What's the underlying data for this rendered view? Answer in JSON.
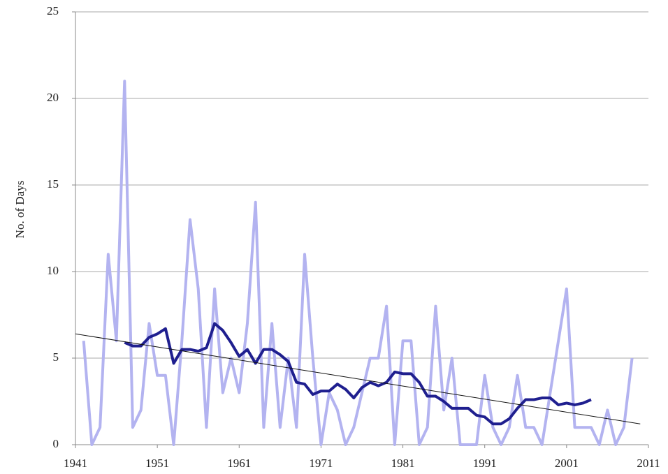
{
  "chart_data": {
    "type": "line",
    "ylabel": "No. of Days",
    "xlim": [
      1941,
      2011
    ],
    "xticks": [
      1941,
      1951,
      1961,
      1971,
      1981,
      1991,
      2001,
      2011
    ],
    "ylim": [
      0,
      25
    ],
    "yticks": [
      0,
      5,
      10,
      15,
      20,
      25
    ],
    "grid": true,
    "series": [
      {
        "color": "#b3b3f0",
        "width": 4,
        "x": [
          1942,
          1943,
          1944,
          1945,
          1946,
          1947,
          1948,
          1949,
          1950,
          1951,
          1952,
          1953,
          1954,
          1955,
          1956,
          1957,
          1958,
          1959,
          1960,
          1961,
          1962,
          1963,
          1964,
          1965,
          1966,
          1967,
          1968,
          1969,
          1970,
          1971,
          1972,
          1973,
          1974,
          1975,
          1976,
          1977,
          1978,
          1979,
          1980,
          1981,
          1982,
          1983,
          1984,
          1985,
          1986,
          1987,
          1988,
          1989,
          1990,
          1991,
          1992,
          1993,
          1994,
          1995,
          1996,
          1997,
          1998,
          1999,
          2000,
          2001,
          2002,
          2003,
          2004,
          2005,
          2006,
          2007,
          2008,
          2009
        ],
        "values": [
          6,
          0,
          1,
          11,
          6,
          21,
          1,
          2,
          7,
          4,
          4,
          0,
          6,
          13,
          9,
          1,
          9,
          3,
          5,
          3,
          7,
          14,
          1,
          7,
          1,
          5,
          1,
          11,
          5,
          0,
          3,
          2,
          0,
          1,
          3,
          5,
          5,
          8,
          0,
          6,
          6,
          0,
          1,
          8,
          2,
          5,
          0,
          0,
          0,
          4,
          1,
          0,
          1,
          4,
          1,
          1,
          0,
          3,
          6,
          9,
          1,
          1,
          1,
          0,
          2,
          0,
          1,
          5
        ]
      },
      {
        "color": "#1f1f8f",
        "width": 4,
        "x": [
          1947,
          1948,
          1949,
          1950,
          1951,
          1952,
          1953,
          1954,
          1955,
          1956,
          1957,
          1958,
          1959,
          1960,
          1961,
          1962,
          1963,
          1964,
          1965,
          1966,
          1967,
          1968,
          1969,
          1970,
          1971,
          1972,
          1973,
          1974,
          1975,
          1976,
          1977,
          1978,
          1979,
          1980,
          1981,
          1982,
          1983,
          1984,
          1985,
          1986,
          1987,
          1988,
          1989,
          1990,
          1991,
          1992,
          1993,
          1994,
          1995,
          1996,
          1997,
          1998,
          1999,
          2000,
          2001,
          2002,
          2003,
          2004
        ],
        "values": [
          5.9,
          5.7,
          5.7,
          6.2,
          6.4,
          6.7,
          4.7,
          5.5,
          5.5,
          5.4,
          5.6,
          7.0,
          6.6,
          5.9,
          5.1,
          5.5,
          4.7,
          5.5,
          5.5,
          5.2,
          4.8,
          3.6,
          3.5,
          2.9,
          3.1,
          3.1,
          3.5,
          3.2,
          2.7,
          3.3,
          3.6,
          3.4,
          3.6,
          4.2,
          4.1,
          4.1,
          3.6,
          2.8,
          2.8,
          2.5,
          2.1,
          2.1,
          2.1,
          1.7,
          1.6,
          1.2,
          1.2,
          1.5,
          2.1,
          2.6,
          2.6,
          2.7,
          2.7,
          2.3,
          2.4,
          2.3,
          2.4,
          2.6
        ]
      },
      {
        "color": "#111111",
        "width": 1,
        "x": [
          1941,
          2010
        ],
        "values": [
          6.4,
          1.2
        ]
      }
    ]
  }
}
